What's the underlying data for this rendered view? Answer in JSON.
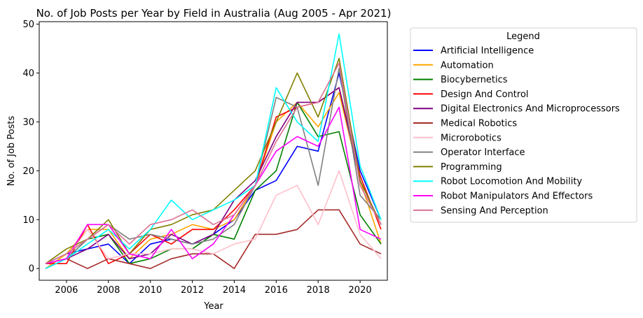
{
  "chart_data": {
    "type": "line",
    "title": "No. of Job Posts per Year by Field in Australia (Aug 2005 - Apr 2021)",
    "xlabel": "Year",
    "ylabel": "No. of Job Posts",
    "xlim": [
      2004.7,
      2021.3
    ],
    "ylim": [
      -2.4,
      50.5
    ],
    "xticks": [
      2006,
      2008,
      2010,
      2012,
      2014,
      2016,
      2018,
      2020
    ],
    "yticks": [
      0,
      10,
      20,
      30,
      40,
      50
    ],
    "grid": false,
    "legend": {
      "title": "Legend",
      "placement": "outside-right"
    },
    "x": [
      2005,
      2006,
      2007,
      2008,
      2009,
      2010,
      2011,
      2012,
      2013,
      2014,
      2015,
      2016,
      2017,
      2018,
      2019,
      2020,
      2021
    ],
    "series": [
      {
        "name": "Artificial Intelligence",
        "color": "#0000ff",
        "values": [
          1,
          3,
          4,
          5,
          1,
          5,
          6,
          5,
          7,
          10,
          16,
          18,
          25,
          24,
          40,
          20,
          10
        ]
      },
      {
        "name": "Automation",
        "color": "#ffa500",
        "values": [
          0,
          3,
          8,
          8,
          2,
          6,
          7,
          9,
          8,
          10,
          17,
          30,
          34,
          29,
          36,
          18,
          5
        ]
      },
      {
        "name": "Biocybernetics",
        "color": "#008000",
        "values": [
          0,
          2,
          6,
          7,
          1,
          2,
          4,
          4,
          7,
          6,
          16,
          20,
          34,
          27,
          28,
          11,
          5
        ]
      },
      {
        "name": "Design And Control",
        "color": "#ff0000",
        "values": [
          1,
          1,
          9,
          1,
          3,
          7,
          5,
          8,
          8,
          12,
          17,
          31,
          33,
          34,
          37,
          19,
          8
        ]
      },
      {
        "name": "Digital Electronics And Microprocessors",
        "color": "#800080",
        "values": [
          0,
          2,
          4,
          7,
          2,
          3,
          7,
          5,
          7,
          14,
          18,
          27,
          34,
          34,
          37,
          18,
          9
        ]
      },
      {
        "name": "Medical Robotics",
        "color": "#a52a2a",
        "values": [
          1,
          2,
          0,
          2,
          1,
          0,
          2,
          3,
          3,
          0,
          7,
          7,
          8,
          12,
          12,
          5,
          3
        ]
      },
      {
        "name": "Microrobotics",
        "color": "#ffc0cb",
        "values": [
          0,
          2,
          8,
          2,
          3,
          3,
          4,
          4,
          3,
          5,
          6,
          15,
          17,
          9,
          20,
          7,
          2
        ]
      },
      {
        "name": "Operator Interface",
        "color": "#808080",
        "values": [
          0,
          2,
          6,
          9,
          6,
          7,
          6,
          5,
          6,
          9,
          17,
          35,
          33,
          17,
          41,
          15,
          10
        ]
      },
      {
        "name": "Programming",
        "color": "#808000",
        "values": [
          1,
          4,
          6,
          10,
          3,
          8,
          9,
          11,
          12,
          16,
          20,
          30,
          40,
          31,
          43,
          18,
          9
        ]
      },
      {
        "name": "Robot Locomotion And Mobility",
        "color": "#00ffff",
        "values": [
          0,
          2,
          5,
          8,
          4,
          8,
          14,
          10,
          12,
          14,
          17,
          37,
          30,
          26,
          48,
          21,
          10
        ]
      },
      {
        "name": "Robot Manipulators And Effectors",
        "color": "#ff00ff",
        "values": [
          1,
          2,
          9,
          9,
          3,
          2,
          8,
          2,
          5,
          11,
          17,
          24,
          27,
          25,
          33,
          8,
          6
        ]
      },
      {
        "name": "Sensing And Perception",
        "color": "#db7093",
        "values": [
          1,
          3,
          6,
          9,
          5,
          9,
          10,
          12,
          9,
          11,
          17,
          26,
          33,
          34,
          42,
          17,
          9
        ]
      }
    ]
  }
}
